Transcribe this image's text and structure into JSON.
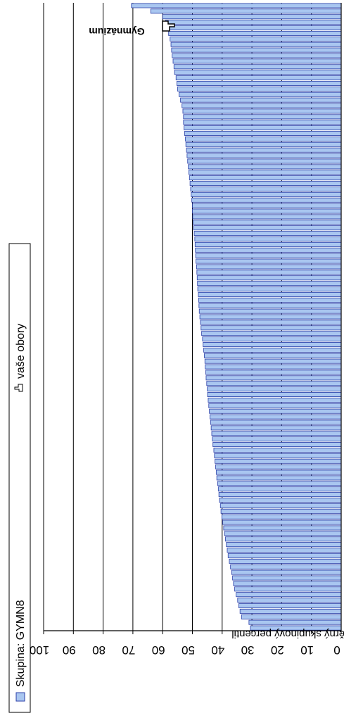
{
  "chart_data": {
    "type": "bar",
    "orientation": "horizontal",
    "ylabel": "výsledek testu - průměrný skupinový percentil",
    "ylim": [
      0,
      100
    ],
    "y_ticks": [
      "0",
      "10",
      "20",
      "30",
      "40",
      "50",
      "60",
      "70",
      "80",
      "90",
      "100"
    ],
    "grid": true,
    "legend": {
      "placement": "right",
      "entries": [
        {
          "label": "Skupina: GYMN8",
          "color": "#a9c6f0"
        },
        {
          "label": "vaše obory",
          "icon": "hand-pointer-icon"
        }
      ]
    },
    "annotation": {
      "label": "Gymnázium",
      "value": 59,
      "icon": "hand-pointer-icon"
    },
    "colors": {
      "bar_fill": "#a9c6f0",
      "bar_stroke": "#2b3fa8"
    },
    "values": [
      70.5,
      64,
      60,
      59,
      58.5,
      58,
      57.5,
      57.2,
      57,
      56.8,
      56.5,
      56.2,
      56,
      55.5,
      55.2,
      55,
      54.5,
      54,
      53.5,
      53.2,
      53,
      53,
      52.8,
      52.6,
      52.4,
      52.2,
      52,
      51.8,
      51.6,
      51.4,
      51.2,
      51,
      50.8,
      50.6,
      50.4,
      50.2,
      50,
      50,
      49.9,
      49.8,
      49.6,
      49.4,
      49.2,
      49.1,
      49,
      48.9,
      48.8,
      48.6,
      48.5,
      48.4,
      48.3,
      48.2,
      48,
      47.9,
      47.8,
      47.7,
      47.5,
      47.3,
      47.1,
      46.9,
      46.6,
      46.4,
      46.2,
      46,
      45.8,
      45.7,
      45.5,
      45.4,
      45.2,
      45,
      44.9,
      44.7,
      44.5,
      44.3,
      44.1,
      43.9,
      43.7,
      43.5,
      43.3,
      43.1,
      42.8,
      42.6,
      42.4,
      42.2,
      42,
      41.8,
      41.5,
      41.3,
      41.1,
      40.9,
      40.6,
      40.4,
      40.1,
      39.8,
      39.5,
      39.2,
      38.9,
      38.6,
      38.3,
      38,
      37.6,
      37.2,
      36.8,
      36.5,
      36.2,
      35.8,
      35.3,
      34.8,
      34.4,
      34,
      33.5,
      31,
      30.5
    ]
  }
}
